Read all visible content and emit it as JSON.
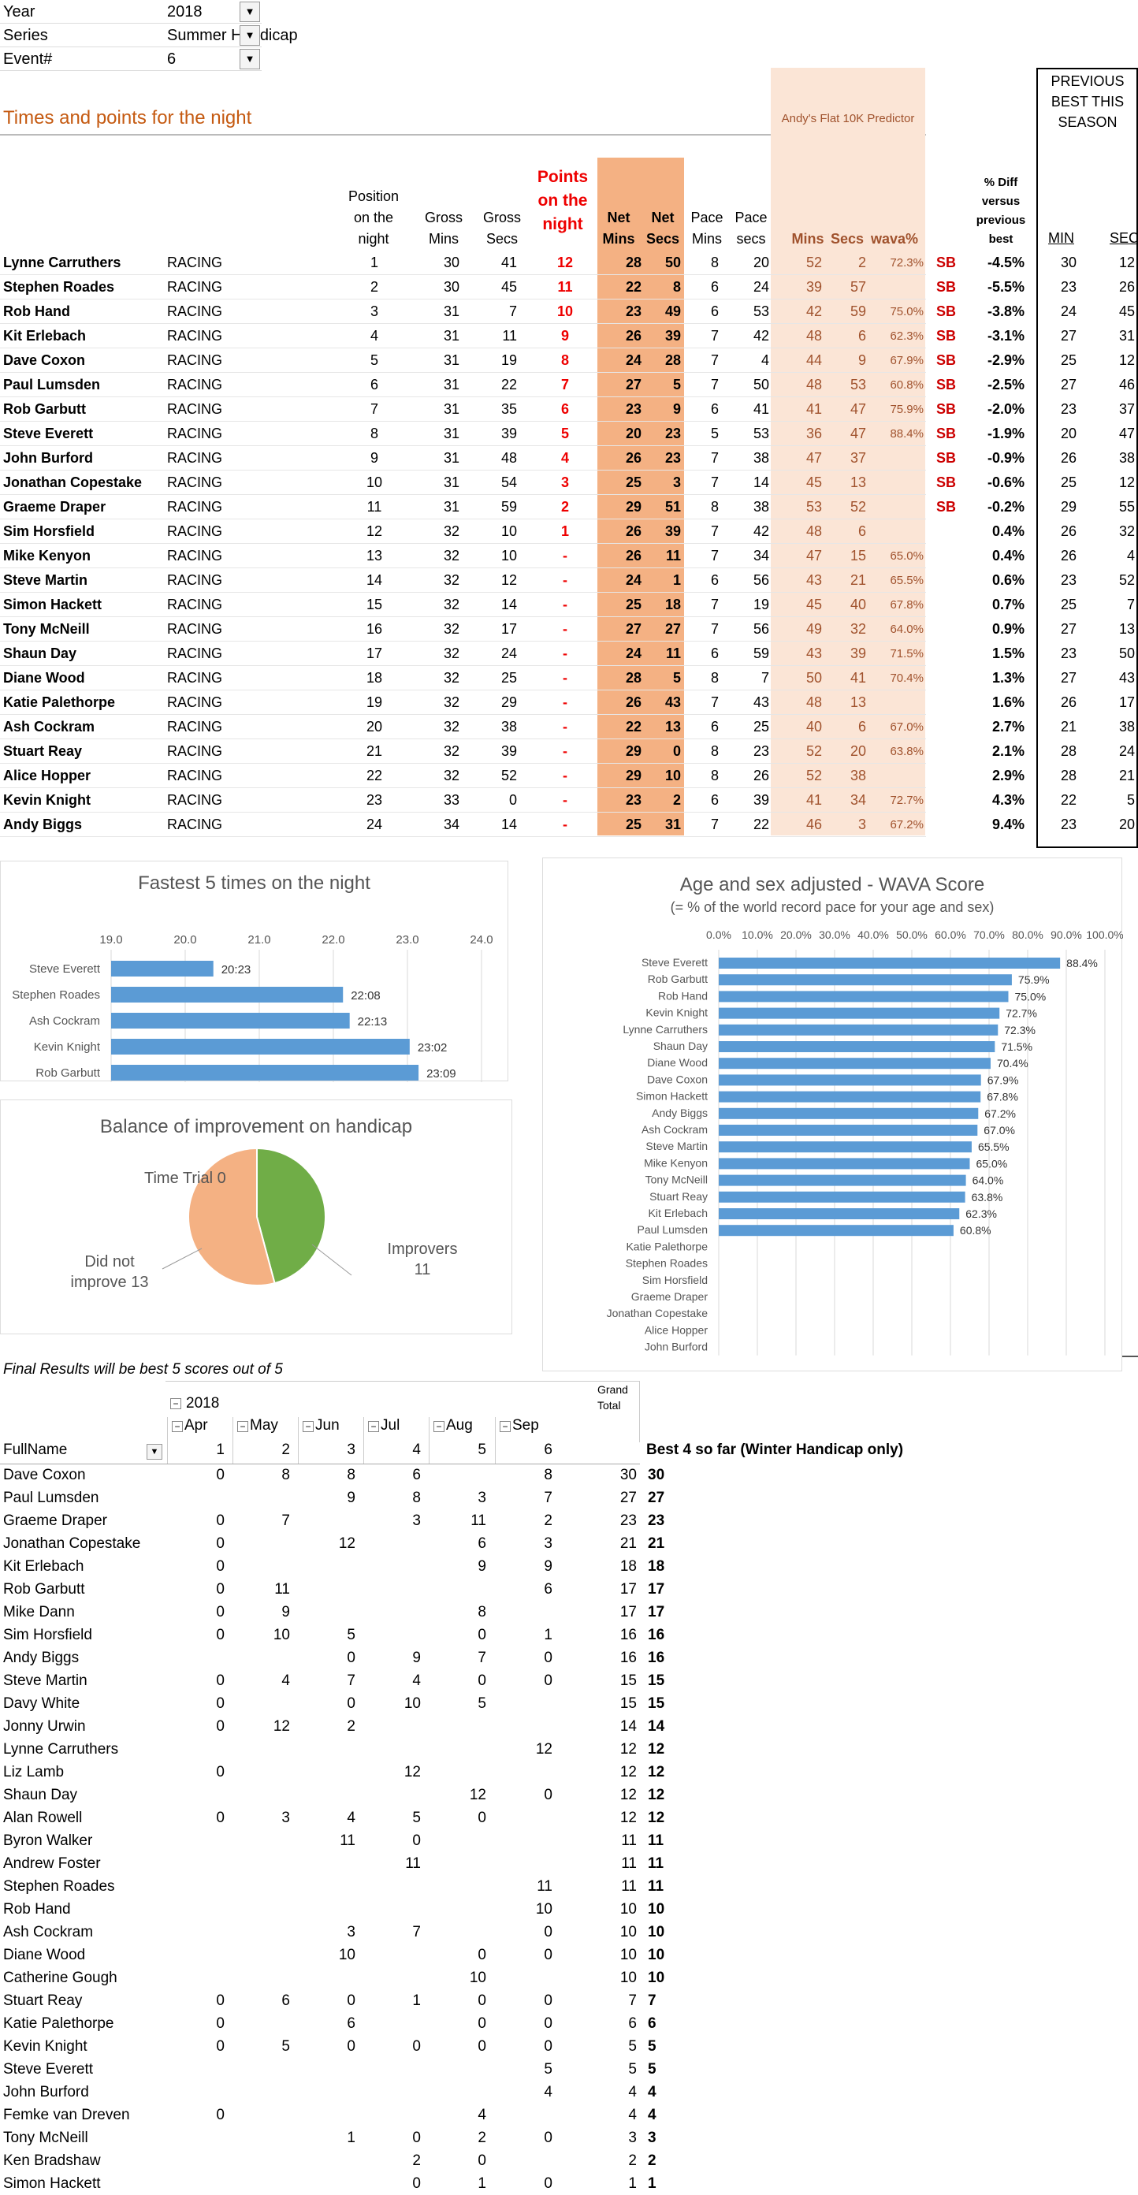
{
  "filters": [
    {
      "label": "Year",
      "value": "2018"
    },
    {
      "label": "Series",
      "value": "Summer Handicap"
    },
    {
      "label": "Event#",
      "value": "6"
    }
  ],
  "section_title": "Times and points for the night",
  "predictor_title": "Andy's Flat 10K Predictor",
  "prev_best_title": "PREVIOUS BEST THIS SEASON",
  "headers": {
    "position": "Position on the night",
    "gross_mins": "Gross Mins",
    "gross_secs": "Gross Secs",
    "points": "Points on the night",
    "net_mins": "Net Mins",
    "net_secs": "Net Secs",
    "pace_mins": "Pace Mins",
    "pace_secs": "Pace secs",
    "pred_mins": "Mins",
    "pred_secs": "Secs",
    "wava": "wava%",
    "pct_diff": "% Diff versus previous best",
    "min": "MIN",
    "sec": "SEC"
  },
  "results": [
    {
      "name": "Lynne Carruthers",
      "status": "RACING",
      "pos": "1",
      "gm": "30",
      "gs": "41",
      "pts": "12",
      "nm": "28",
      "ns": "50",
      "pm": "8",
      "ps": "20",
      "pdm": "52",
      "pds": "2",
      "wava": "72.3%",
      "sb": "SB",
      "diff": "-4.5%",
      "bm": "30",
      "bs": "12"
    },
    {
      "name": "Stephen Roades",
      "status": "RACING",
      "pos": "2",
      "gm": "30",
      "gs": "45",
      "pts": "11",
      "nm": "22",
      "ns": "8",
      "pm": "6",
      "ps": "24",
      "pdm": "39",
      "pds": "57",
      "wava": "",
      "sb": "SB",
      "diff": "-5.5%",
      "bm": "23",
      "bs": "26"
    },
    {
      "name": "Rob Hand",
      "status": "RACING",
      "pos": "3",
      "gm": "31",
      "gs": "7",
      "pts": "10",
      "nm": "23",
      "ns": "49",
      "pm": "6",
      "ps": "53",
      "pdm": "42",
      "pds": "59",
      "wava": "75.0%",
      "sb": "SB",
      "diff": "-3.8%",
      "bm": "24",
      "bs": "45"
    },
    {
      "name": "Kit Erlebach",
      "status": "RACING",
      "pos": "4",
      "gm": "31",
      "gs": "11",
      "pts": "9",
      "nm": "26",
      "ns": "39",
      "pm": "7",
      "ps": "42",
      "pdm": "48",
      "pds": "6",
      "wava": "62.3%",
      "sb": "SB",
      "diff": "-3.1%",
      "bm": "27",
      "bs": "31"
    },
    {
      "name": "Dave Coxon",
      "status": "RACING",
      "pos": "5",
      "gm": "31",
      "gs": "19",
      "pts": "8",
      "nm": "24",
      "ns": "28",
      "pm": "7",
      "ps": "4",
      "pdm": "44",
      "pds": "9",
      "wava": "67.9%",
      "sb": "SB",
      "diff": "-2.9%",
      "bm": "25",
      "bs": "12"
    },
    {
      "name": "Paul Lumsden",
      "status": "RACING",
      "pos": "6",
      "gm": "31",
      "gs": "22",
      "pts": "7",
      "nm": "27",
      "ns": "5",
      "pm": "7",
      "ps": "50",
      "pdm": "48",
      "pds": "53",
      "wava": "60.8%",
      "sb": "SB",
      "diff": "-2.5%",
      "bm": "27",
      "bs": "46"
    },
    {
      "name": "Rob Garbutt",
      "status": "RACING",
      "pos": "7",
      "gm": "31",
      "gs": "35",
      "pts": "6",
      "nm": "23",
      "ns": "9",
      "pm": "6",
      "ps": "41",
      "pdm": "41",
      "pds": "47",
      "wava": "75.9%",
      "sb": "SB",
      "diff": "-2.0%",
      "bm": "23",
      "bs": "37"
    },
    {
      "name": "Steve Everett",
      "status": "RACING",
      "pos": "8",
      "gm": "31",
      "gs": "39",
      "pts": "5",
      "nm": "20",
      "ns": "23",
      "pm": "5",
      "ps": "53",
      "pdm": "36",
      "pds": "47",
      "wava": "88.4%",
      "sb": "SB",
      "diff": "-1.9%",
      "bm": "20",
      "bs": "47"
    },
    {
      "name": "John Burford",
      "status": "RACING",
      "pos": "9",
      "gm": "31",
      "gs": "48",
      "pts": "4",
      "nm": "26",
      "ns": "23",
      "pm": "7",
      "ps": "38",
      "pdm": "47",
      "pds": "37",
      "wava": "",
      "sb": "SB",
      "diff": "-0.9%",
      "bm": "26",
      "bs": "38"
    },
    {
      "name": "Jonathan Copestake",
      "status": "RACING",
      "pos": "10",
      "gm": "31",
      "gs": "54",
      "pts": "3",
      "nm": "25",
      "ns": "3",
      "pm": "7",
      "ps": "14",
      "pdm": "45",
      "pds": "13",
      "wava": "",
      "sb": "SB",
      "diff": "-0.6%",
      "bm": "25",
      "bs": "12"
    },
    {
      "name": "Graeme Draper",
      "status": "RACING",
      "pos": "11",
      "gm": "31",
      "gs": "59",
      "pts": "2",
      "nm": "29",
      "ns": "51",
      "pm": "8",
      "ps": "38",
      "pdm": "53",
      "pds": "52",
      "wava": "",
      "sb": "SB",
      "diff": "-0.2%",
      "bm": "29",
      "bs": "55"
    },
    {
      "name": "Sim Horsfield",
      "status": "RACING",
      "pos": "12",
      "gm": "32",
      "gs": "10",
      "pts": "1",
      "nm": "26",
      "ns": "39",
      "pm": "7",
      "ps": "42",
      "pdm": "48",
      "pds": "6",
      "wava": "",
      "sb": "",
      "diff": "0.4%",
      "bm": "26",
      "bs": "32"
    },
    {
      "name": "Mike Kenyon",
      "status": "RACING",
      "pos": "13",
      "gm": "32",
      "gs": "10",
      "pts": "-",
      "nm": "26",
      "ns": "11",
      "pm": "7",
      "ps": "34",
      "pdm": "47",
      "pds": "15",
      "wava": "65.0%",
      "sb": "",
      "diff": "0.4%",
      "bm": "26",
      "bs": "4"
    },
    {
      "name": "Steve Martin",
      "status": "RACING",
      "pos": "14",
      "gm": "32",
      "gs": "12",
      "pts": "-",
      "nm": "24",
      "ns": "1",
      "pm": "6",
      "ps": "56",
      "pdm": "43",
      "pds": "21",
      "wava": "65.5%",
      "sb": "",
      "diff": "0.6%",
      "bm": "23",
      "bs": "52"
    },
    {
      "name": "Simon Hackett",
      "status": "RACING",
      "pos": "15",
      "gm": "32",
      "gs": "14",
      "pts": "-",
      "nm": "25",
      "ns": "18",
      "pm": "7",
      "ps": "19",
      "pdm": "45",
      "pds": "40",
      "wava": "67.8%",
      "sb": "",
      "diff": "0.7%",
      "bm": "25",
      "bs": "7"
    },
    {
      "name": "Tony McNeill",
      "status": "RACING",
      "pos": "16",
      "gm": "32",
      "gs": "17",
      "pts": "-",
      "nm": "27",
      "ns": "27",
      "pm": "7",
      "ps": "56",
      "pdm": "49",
      "pds": "32",
      "wava": "64.0%",
      "sb": "",
      "diff": "0.9%",
      "bm": "27",
      "bs": "13"
    },
    {
      "name": "Shaun Day",
      "status": "RACING",
      "pos": "17",
      "gm": "32",
      "gs": "24",
      "pts": "-",
      "nm": "24",
      "ns": "11",
      "pm": "6",
      "ps": "59",
      "pdm": "43",
      "pds": "39",
      "wava": "71.5%",
      "sb": "",
      "diff": "1.5%",
      "bm": "23",
      "bs": "50"
    },
    {
      "name": "Diane Wood",
      "status": "RACING",
      "pos": "18",
      "gm": "32",
      "gs": "25",
      "pts": "-",
      "nm": "28",
      "ns": "5",
      "pm": "8",
      "ps": "7",
      "pdm": "50",
      "pds": "41",
      "wava": "70.4%",
      "sb": "",
      "diff": "1.3%",
      "bm": "27",
      "bs": "43"
    },
    {
      "name": "Katie Palethorpe",
      "status": "RACING",
      "pos": "19",
      "gm": "32",
      "gs": "29",
      "pts": "-",
      "nm": "26",
      "ns": "43",
      "pm": "7",
      "ps": "43",
      "pdm": "48",
      "pds": "13",
      "wava": "",
      "sb": "",
      "diff": "1.6%",
      "bm": "26",
      "bs": "17"
    },
    {
      "name": "Ash Cockram",
      "status": "RACING",
      "pos": "20",
      "gm": "32",
      "gs": "38",
      "pts": "-",
      "nm": "22",
      "ns": "13",
      "pm": "6",
      "ps": "25",
      "pdm": "40",
      "pds": "6",
      "wava": "67.0%",
      "sb": "",
      "diff": "2.7%",
      "bm": "21",
      "bs": "38"
    },
    {
      "name": "Stuart Reay",
      "status": "RACING",
      "pos": "21",
      "gm": "32",
      "gs": "39",
      "pts": "-",
      "nm": "29",
      "ns": "0",
      "pm": "8",
      "ps": "23",
      "pdm": "52",
      "pds": "20",
      "wava": "63.8%",
      "sb": "",
      "diff": "2.1%",
      "bm": "28",
      "bs": "24"
    },
    {
      "name": "Alice Hopper",
      "status": "RACING",
      "pos": "22",
      "gm": "32",
      "gs": "52",
      "pts": "-",
      "nm": "29",
      "ns": "10",
      "pm": "8",
      "ps": "26",
      "pdm": "52",
      "pds": "38",
      "wava": "",
      "sb": "",
      "diff": "2.9%",
      "bm": "28",
      "bs": "21"
    },
    {
      "name": "Kevin Knight",
      "status": "RACING",
      "pos": "23",
      "gm": "33",
      "gs": "0",
      "pts": "-",
      "nm": "23",
      "ns": "2",
      "pm": "6",
      "ps": "39",
      "pdm": "41",
      "pds": "34",
      "wava": "72.7%",
      "sb": "",
      "diff": "4.3%",
      "bm": "22",
      "bs": "5"
    },
    {
      "name": "Andy Biggs",
      "status": "RACING",
      "pos": "24",
      "gm": "34",
      "gs": "14",
      "pts": "-",
      "nm": "25",
      "ns": "31",
      "pm": "7",
      "ps": "22",
      "pdm": "46",
      "pds": "3",
      "wava": "67.2%",
      "sb": "",
      "diff": "9.4%",
      "bm": "23",
      "bs": "20"
    }
  ],
  "fastest": {
    "title": "Fastest 5 times on the night",
    "xlim": [
      19,
      24
    ],
    "ticks": [
      "19.0",
      "20.0",
      "21.0",
      "22.0",
      "23.0",
      "24.0"
    ],
    "names": [
      "Steve Everett",
      "Stephen Roades",
      "Ash Cockram",
      "Kevin Knight",
      "Rob Garbutt"
    ],
    "values": [
      20.38,
      22.13,
      22.22,
      23.03,
      23.15
    ],
    "labels": [
      "20:23",
      "22:08",
      "22:13",
      "23:02",
      "23:09"
    ]
  },
  "balance": {
    "title": "Balance of improvement on handicap",
    "slices": [
      {
        "label": "Time Trial",
        "value": 0,
        "color": "#4472c4"
      },
      {
        "label": "Did not improve",
        "value": 13,
        "color": "#f4b183"
      },
      {
        "label": "Improvers",
        "value": 11,
        "color": "#70ad47"
      }
    ],
    "label_tt": "Time Trial 0",
    "label_dni": "Did not improve 13",
    "label_imp": "Improvers 11"
  },
  "wava_chart": {
    "title": "Age and sex adjusted - WAVA Score",
    "subtitle": "(= % of the world record pace for your age and sex)",
    "ticks": [
      "0.0%",
      "10.0%",
      "20.0%",
      "30.0%",
      "40.0%",
      "50.0%",
      "60.0%",
      "70.0%",
      "80.0%",
      "90.0%",
      "100.0%"
    ],
    "names": [
      "Steve Everett",
      "Rob Garbutt",
      "Rob Hand",
      "Kevin Knight",
      "Lynne Carruthers",
      "Shaun Day",
      "Diane Wood",
      "Dave Coxon",
      "Simon Hackett",
      "Andy Biggs",
      "Ash Cockram",
      "Steve Martin",
      "Mike Kenyon",
      "Tony McNeill",
      "Stuart Reay",
      "Kit Erlebach",
      "Paul Lumsden",
      "Katie Palethorpe",
      "Stephen Roades",
      "Sim Horsfield",
      "Graeme Draper",
      "Jonathan Copestake",
      "Alice Hopper",
      "John Burford"
    ],
    "values": [
      88.4,
      75.9,
      75.0,
      72.7,
      72.3,
      71.5,
      70.4,
      67.9,
      67.8,
      67.2,
      67.0,
      65.5,
      65.0,
      64.0,
      63.8,
      62.3,
      60.8,
      null,
      null,
      null,
      null,
      null,
      null,
      null
    ],
    "labels": [
      "88.4%",
      "75.9%",
      "75.0%",
      "72.7%",
      "72.3%",
      "71.5%",
      "70.4%",
      "67.9%",
      "67.8%",
      "67.2%",
      "67.0%",
      "65.5%",
      "65.0%",
      "64.0%",
      "63.8%",
      "62.3%",
      "60.8%",
      "",
      "",
      "",
      "",
      "",
      "",
      ""
    ]
  },
  "final_note": "Final Results will be best 5 scores out of 5",
  "pivot": {
    "year": "2018",
    "grand_total": "Grand Total",
    "months": [
      "Apr",
      "May",
      "Jun",
      "Jul",
      "Aug",
      "Sep"
    ],
    "fullname": "FullName",
    "events": [
      "1",
      "2",
      "3",
      "4",
      "5",
      "6"
    ],
    "best_label": "Best 4 so far (Winter Handicap only)",
    "rows": [
      {
        "n": "Dave Coxon",
        "v": [
          "0",
          "8",
          "8",
          "6",
          "",
          "8"
        ],
        "t": "30",
        "b": "30"
      },
      {
        "n": "Paul Lumsden",
        "v": [
          "",
          "",
          "9",
          "8",
          "3",
          "7"
        ],
        "t": "27",
        "b": "27"
      },
      {
        "n": "Graeme Draper",
        "v": [
          "0",
          "7",
          "",
          "3",
          "11",
          "2"
        ],
        "t": "23",
        "b": "23"
      },
      {
        "n": "Jonathan Copestake",
        "v": [
          "0",
          "",
          "12",
          "",
          "6",
          "3"
        ],
        "t": "21",
        "b": "21"
      },
      {
        "n": "Kit Erlebach",
        "v": [
          "0",
          "",
          "",
          "",
          "9",
          "9"
        ],
        "t": "18",
        "b": "18"
      },
      {
        "n": "Rob Garbutt",
        "v": [
          "0",
          "11",
          "",
          "",
          "",
          "6"
        ],
        "t": "17",
        "b": "17"
      },
      {
        "n": "Mike Dann",
        "v": [
          "0",
          "9",
          "",
          "",
          "8",
          ""
        ],
        "t": "17",
        "b": "17"
      },
      {
        "n": "Sim Horsfield",
        "v": [
          "0",
          "10",
          "5",
          "",
          "0",
          "1"
        ],
        "t": "16",
        "b": "16"
      },
      {
        "n": "Andy Biggs",
        "v": [
          "",
          "",
          "0",
          "9",
          "7",
          "0"
        ],
        "t": "16",
        "b": "16"
      },
      {
        "n": "Steve Martin",
        "v": [
          "0",
          "4",
          "7",
          "4",
          "0",
          "0"
        ],
        "t": "15",
        "b": "15"
      },
      {
        "n": "Davy White",
        "v": [
          "0",
          "",
          "0",
          "10",
          "5",
          ""
        ],
        "t": "15",
        "b": "15"
      },
      {
        "n": "Jonny Urwin",
        "v": [
          "0",
          "12",
          "2",
          "",
          "",
          ""
        ],
        "t": "14",
        "b": "14"
      },
      {
        "n": "Lynne Carruthers",
        "v": [
          "",
          "",
          "",
          "",
          "",
          "12"
        ],
        "t": "12",
        "b": "12"
      },
      {
        "n": "Liz Lamb",
        "v": [
          "0",
          "",
          "",
          "12",
          "",
          ""
        ],
        "t": "12",
        "b": "12"
      },
      {
        "n": "Shaun Day",
        "v": [
          "",
          "",
          "",
          "",
          "12",
          "0"
        ],
        "t": "12",
        "b": "12"
      },
      {
        "n": "Alan Rowell",
        "v": [
          "0",
          "3",
          "4",
          "5",
          "0",
          ""
        ],
        "t": "12",
        "b": "12"
      },
      {
        "n": "Byron Walker",
        "v": [
          "",
          "",
          "11",
          "0",
          "",
          ""
        ],
        "t": "11",
        "b": "11"
      },
      {
        "n": "Andrew Foster",
        "v": [
          "",
          "",
          "",
          "11",
          "",
          ""
        ],
        "t": "11",
        "b": "11"
      },
      {
        "n": "Stephen Roades",
        "v": [
          "",
          "",
          "",
          "",
          "",
          "11"
        ],
        "t": "11",
        "b": "11"
      },
      {
        "n": "Rob Hand",
        "v": [
          "",
          "",
          "",
          "",
          "",
          "10"
        ],
        "t": "10",
        "b": "10"
      },
      {
        "n": "Ash Cockram",
        "v": [
          "",
          "",
          "3",
          "7",
          "",
          "0"
        ],
        "t": "10",
        "b": "10"
      },
      {
        "n": "Diane Wood",
        "v": [
          "",
          "",
          "10",
          "",
          "0",
          "0"
        ],
        "t": "10",
        "b": "10"
      },
      {
        "n": "Catherine Gough",
        "v": [
          "",
          "",
          "",
          "",
          "10",
          ""
        ],
        "t": "10",
        "b": "10"
      },
      {
        "n": "Stuart Reay",
        "v": [
          "0",
          "6",
          "0",
          "1",
          "0",
          "0"
        ],
        "t": "7",
        "b": "7"
      },
      {
        "n": "Katie Palethorpe",
        "v": [
          "0",
          "",
          "6",
          "",
          "0",
          "0"
        ],
        "t": "6",
        "b": "6"
      },
      {
        "n": "Kevin Knight",
        "v": [
          "0",
          "5",
          "0",
          "0",
          "0",
          "0"
        ],
        "t": "5",
        "b": "5"
      },
      {
        "n": "Steve Everett",
        "v": [
          "",
          "",
          "",
          "",
          "",
          "5"
        ],
        "t": "5",
        "b": "5"
      },
      {
        "n": "John Burford",
        "v": [
          "",
          "",
          "",
          "",
          "",
          "4"
        ],
        "t": "4",
        "b": "4"
      },
      {
        "n": "Femke van Dreven",
        "v": [
          "0",
          "",
          "",
          "",
          "4",
          ""
        ],
        "t": "4",
        "b": "4"
      },
      {
        "n": "Tony McNeill",
        "v": [
          "",
          "",
          "1",
          "0",
          "2",
          "0"
        ],
        "t": "3",
        "b": "3"
      },
      {
        "n": "Ken Bradshaw",
        "v": [
          "",
          "",
          "",
          "2",
          "0",
          ""
        ],
        "t": "2",
        "b": "2"
      },
      {
        "n": "Simon Hackett",
        "v": [
          "",
          "",
          "",
          "0",
          "1",
          "0"
        ],
        "t": "1",
        "b": "1"
      }
    ]
  },
  "colors": {
    "accent_orange": "#c55a11",
    "net_bg": "#f4b183",
    "pred_bg": "#fbe5d6",
    "bar_blue": "#5b9bd5",
    "points_red": "#ee0000"
  }
}
